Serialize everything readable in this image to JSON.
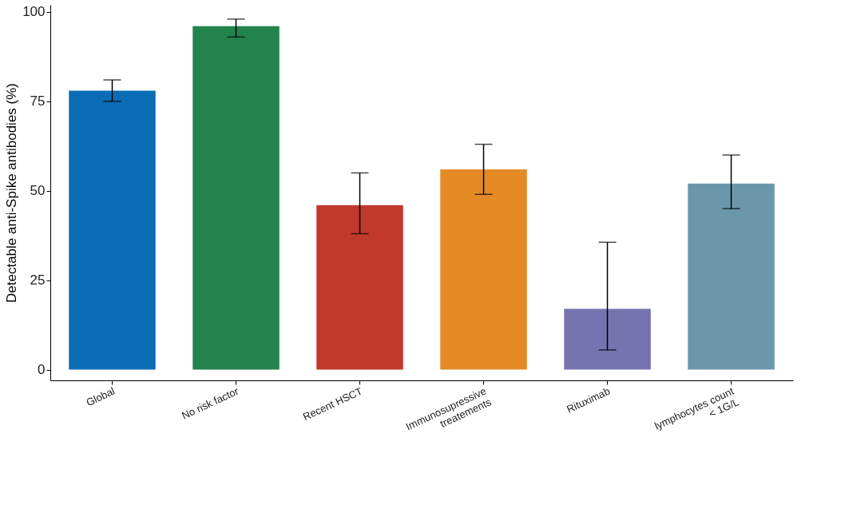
{
  "chart_data": {
    "type": "bar",
    "ylabel": "Detectable anti-Spike antibodies (%)",
    "categories": [
      "Global",
      "No risk factor",
      "Recent HSCT",
      "Immunosupressive\ntreatements",
      "Rituximab",
      "lymphocytes count\n< 1G/L"
    ],
    "values": [
      78,
      96,
      46,
      56,
      17,
      52
    ],
    "colors": [
      "#0a6cb4",
      "#23834d",
      "#c0392b",
      "#e38a24",
      "#7573b0",
      "#6a98aa"
    ],
    "errors": [
      [
        75,
        81
      ],
      [
        93,
        98
      ],
      [
        38,
        55
      ],
      [
        49,
        63
      ],
      [
        5.5,
        35.6
      ],
      [
        45,
        60
      ]
    ],
    "ylim": [
      -3,
      102
    ],
    "yticks": [
      0,
      25,
      50,
      75,
      100
    ],
    "grid": false
  }
}
